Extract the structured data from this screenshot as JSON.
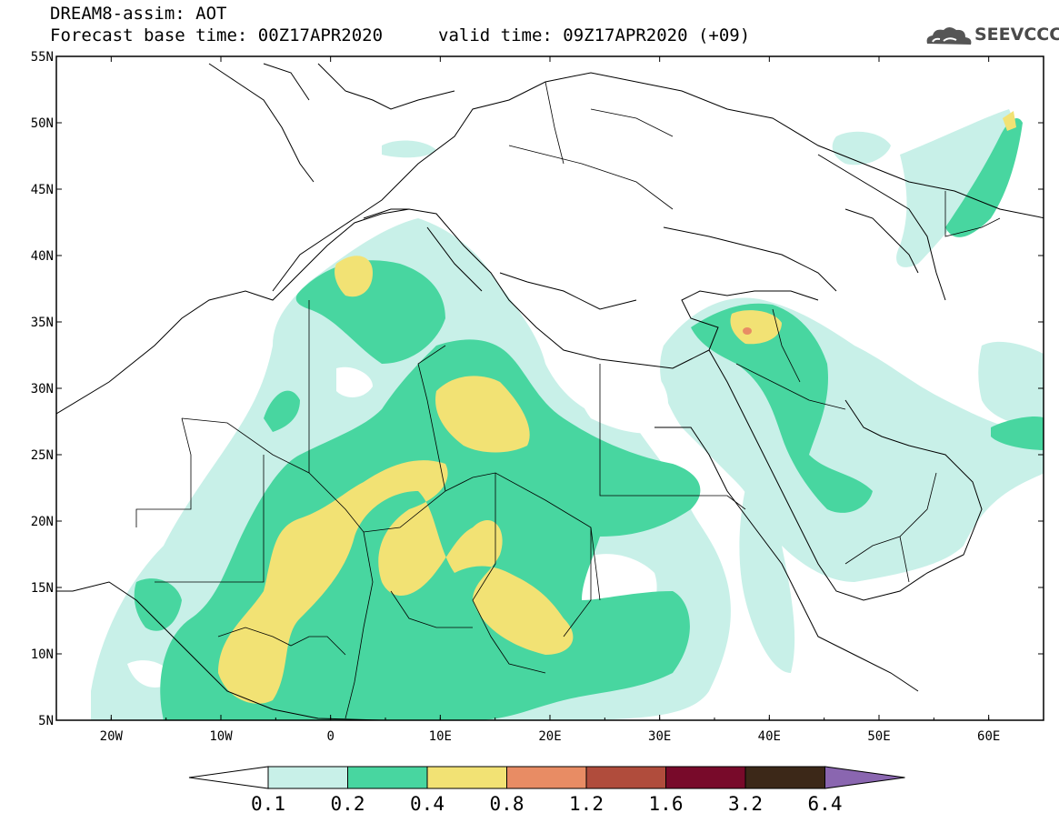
{
  "header": {
    "title": "DREAM8-assim: AOT",
    "base_time": "Forecast base time: 00Z17APR2020",
    "valid_time": "valid time: 09Z17APR2020 (+09)",
    "logo_text": "SEEVCCC"
  },
  "map": {
    "lat_labels": [
      "55N",
      "50N",
      "45N",
      "40N",
      "35N",
      "30N",
      "25N",
      "20N",
      "15N",
      "10N",
      "5N"
    ],
    "lon_labels": [
      "20W",
      "10W",
      "0",
      "10E",
      "20E",
      "30E",
      "40E",
      "50E",
      "60E"
    ],
    "projection": "lat-lon",
    "extent": {
      "lon": [
        -25,
        65
      ],
      "lat": [
        5,
        55
      ]
    },
    "field": "Aerosol Optical Thickness"
  },
  "colorbar": {
    "thresholds": [
      "0.1",
      "0.2",
      "0.4",
      "0.8",
      "1.2",
      "1.6",
      "3.2",
      "6.4"
    ],
    "colors": [
      "#ffffff",
      "#c8f0e8",
      "#48d6a0",
      "#f2e274",
      "#e88c64",
      "#b04c3c",
      "#780a2a",
      "#3c2818",
      "#8a66b0"
    ]
  },
  "colors": {
    "level1": "#c8f0e8",
    "level2": "#48d6a0",
    "level3": "#f2e274",
    "level4": "#e88c64"
  }
}
